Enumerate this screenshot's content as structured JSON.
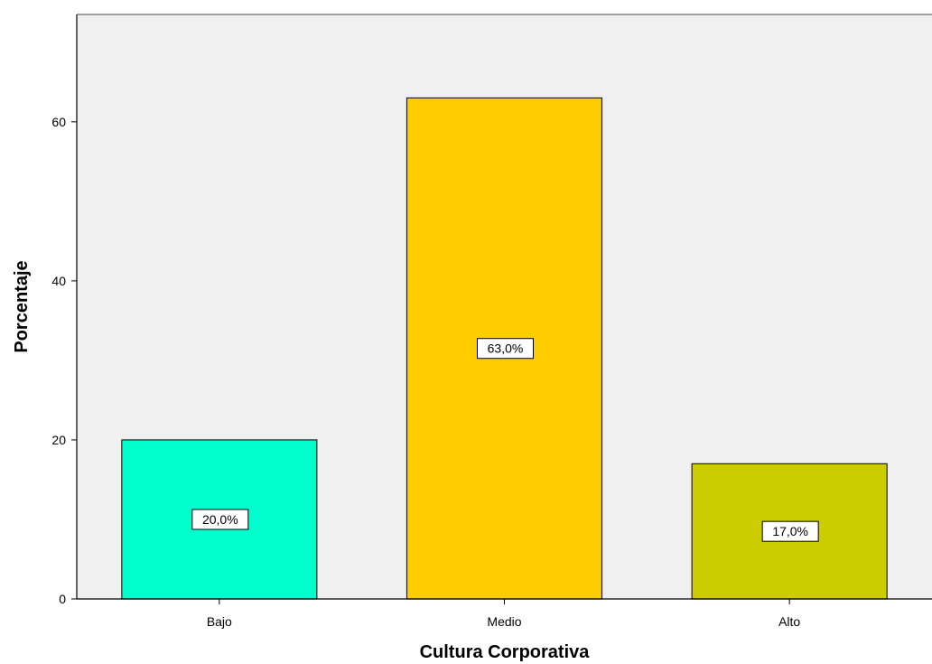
{
  "chart_data": {
    "type": "bar",
    "title": "",
    "xlabel": "Cultura Corporativa",
    "ylabel": "Porcentaje",
    "categories": [
      "Bajo",
      "Medio",
      "Alto"
    ],
    "values": [
      20.0,
      63.0,
      17.0
    ],
    "data_labels": [
      "20,0%",
      "63,0%",
      "17,0%"
    ],
    "colors": [
      "#00ffcc",
      "#ffcc00",
      "#cccc00"
    ],
    "yticks": [
      "0",
      "20",
      "40",
      "60"
    ],
    "ytick_values": [
      0,
      20,
      40,
      60
    ],
    "ylim": [
      0,
      73.5
    ],
    "grid": false,
    "background": "#f0f0f0"
  }
}
